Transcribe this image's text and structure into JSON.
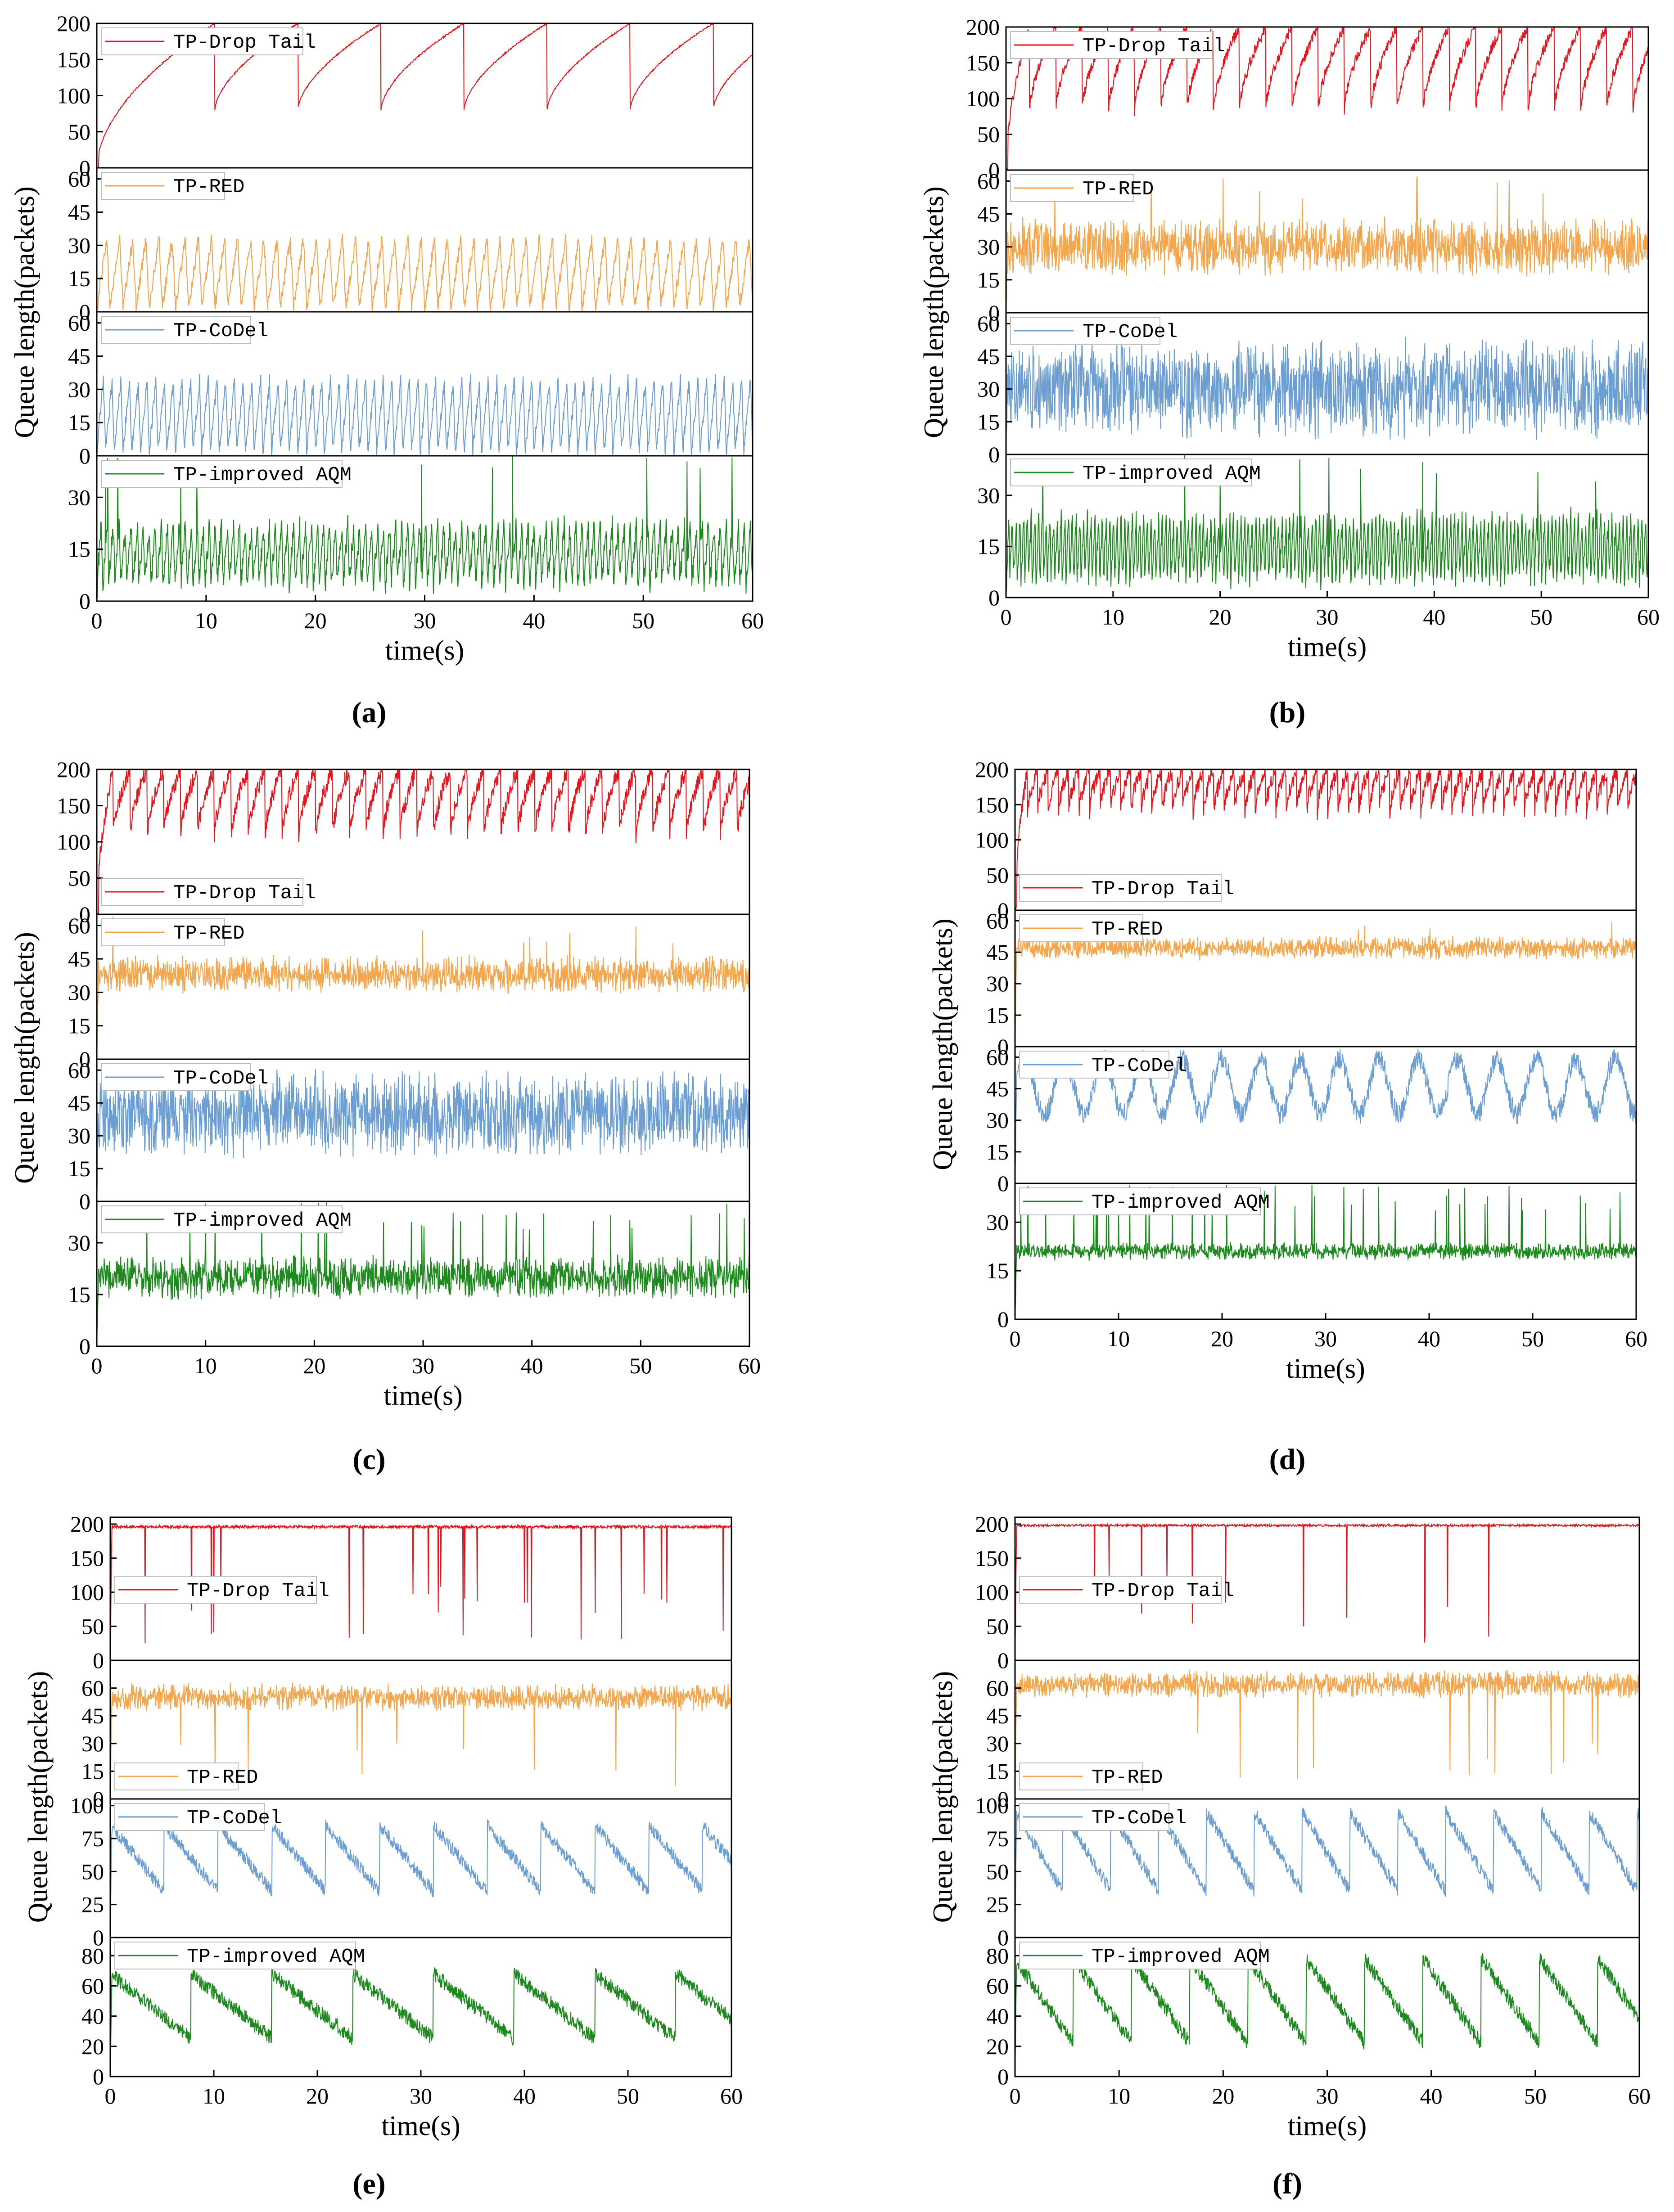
{
  "figure": {
    "ylabel": "Queue length(packets)",
    "xlabel": "time(s)",
    "x_ticks": [
      "0",
      "10",
      "20",
      "30",
      "40",
      "50",
      "60"
    ]
  },
  "colors": {
    "drop_tail": "#e8141b",
    "red": "#f5a54a",
    "codel": "#6b9ed2",
    "improved_aqm": "#1d8a1d",
    "axis": "#000000",
    "legend_border": "#bbbbbb"
  },
  "chart_data": [
    {
      "type": "line",
      "panel_label": "(a)",
      "xlabel": "time(s)",
      "ylabel": "Queue length(packets)",
      "xlim": [
        0,
        60
      ],
      "subplots": [
        {
          "series": "TP-Drop Tail",
          "color_key": "drop_tail",
          "legend_pos": "top-left",
          "ylim": [
            0,
            200
          ],
          "yticks": [
            "0",
            "50",
            "100",
            "150",
            "200"
          ],
          "pattern": "sawtooth",
          "period": 7.6,
          "start": 10.8,
          "low": 80,
          "high": 200,
          "noise": 1
        },
        {
          "series": "TP-RED",
          "color_key": "red",
          "legend_pos": "top-left",
          "ylim": [
            0,
            65
          ],
          "yticks": [
            "0",
            "15",
            "30",
            "45",
            "60"
          ],
          "pattern": "oscillation",
          "period": 1.2,
          "low": 2,
          "high": 33,
          "noise": 3
        },
        {
          "series": "TP-CoDel",
          "color_key": "codel",
          "legend_pos": "top-left",
          "ylim": [
            0,
            65
          ],
          "yticks": [
            "0",
            "15",
            "30",
            "45",
            "60"
          ],
          "pattern": "oscillation",
          "period": 0.8,
          "low": 2,
          "high": 34,
          "noise": 3
        },
        {
          "series": "TP-improved AQM",
          "color_key": "improved_aqm",
          "legend_pos": "top-left",
          "ylim": [
            0,
            42
          ],
          "yticks": [
            "0",
            "15",
            "30"
          ],
          "pattern": "oscillation",
          "period": 0.55,
          "low": 5,
          "high": 22,
          "noise": 3,
          "spikes": 12
        }
      ]
    },
    {
      "type": "line",
      "panel_label": "(b)",
      "xlabel": "time(s)",
      "ylabel": "Queue length(packets)",
      "xlim": [
        0,
        60
      ],
      "subplots": [
        {
          "series": "TP-Drop Tail",
          "color_key": "drop_tail",
          "legend_pos": "top-left",
          "ylim": [
            0,
            200
          ],
          "yticks": [
            "0",
            "50",
            "100",
            "150",
            "200"
          ],
          "pattern": "sawtooth",
          "period": 2.45,
          "start": 2.2,
          "low": 80,
          "high": 200,
          "noise": 8
        },
        {
          "series": "TP-RED",
          "color_key": "red",
          "legend_pos": "top-left",
          "ylim": [
            0,
            65
          ],
          "yticks": [
            "0",
            "15",
            "30",
            "45",
            "60"
          ],
          "pattern": "noise",
          "mean": 30,
          "amp": 9,
          "noise": 5,
          "spikes": 10
        },
        {
          "series": "TP-CoDel",
          "color_key": "codel",
          "legend_pos": "top-left",
          "ylim": [
            0,
            65
          ],
          "yticks": [
            "0",
            "15",
            "30",
            "45",
            "60"
          ],
          "pattern": "noise",
          "mean": 30,
          "amp": 16,
          "noise": 8
        },
        {
          "series": "TP-improved AQM",
          "color_key": "improved_aqm",
          "legend_pos": "top-left",
          "ylim": [
            0,
            42
          ],
          "yticks": [
            "0",
            "15",
            "30"
          ],
          "pattern": "oscillation",
          "period": 0.35,
          "low": 5,
          "high": 24,
          "noise": 3,
          "spikes": 10
        }
      ]
    },
    {
      "type": "line",
      "panel_label": "(c)",
      "xlabel": "time(s)",
      "ylabel": "Queue length(packets)",
      "xlim": [
        0,
        60
      ],
      "subplots": [
        {
          "series": "TP-Drop Tail",
          "color_key": "drop_tail",
          "legend_pos": "bottom-left",
          "ylim": [
            0,
            200
          ],
          "yticks": [
            "0",
            "50",
            "100",
            "150",
            "200"
          ],
          "pattern": "sawtooth",
          "period": 1.55,
          "start": 1.5,
          "low": 105,
          "high": 200,
          "noise": 12
        },
        {
          "series": "TP-RED",
          "color_key": "red",
          "legend_pos": "top-left",
          "ylim": [
            0,
            65
          ],
          "yticks": [
            "0",
            "15",
            "30",
            "45",
            "60"
          ],
          "pattern": "noise",
          "mean": 38,
          "amp": 5,
          "noise": 4,
          "spikes": 8
        },
        {
          "series": "TP-CoDel",
          "color_key": "codel",
          "legend_pos": "top-left",
          "ylim": [
            0,
            65
          ],
          "yticks": [
            "0",
            "15",
            "30",
            "45",
            "60"
          ],
          "pattern": "noise",
          "mean": 40,
          "amp": 14,
          "noise": 7
        },
        {
          "series": "TP-improved AQM",
          "color_key": "improved_aqm",
          "legend_pos": "top-left",
          "ylim": [
            0,
            42
          ],
          "yticks": [
            "0",
            "15",
            "30"
          ],
          "pattern": "noise",
          "mean": 20,
          "amp": 4,
          "noise": 3,
          "spikes": 30
        }
      ]
    },
    {
      "type": "line",
      "panel_label": "(d)",
      "xlabel": "time(s)",
      "ylabel": "Queue length(packets)",
      "xlim": [
        0,
        60
      ],
      "subplots": [
        {
          "series": "TP-Drop Tail",
          "color_key": "drop_tail",
          "legend_pos": "bottom-left",
          "ylim": [
            0,
            200
          ],
          "yticks": [
            "0",
            "50",
            "100",
            "150",
            "200"
          ],
          "pattern": "sawtooth",
          "period": 1.0,
          "start": 1.2,
          "low": 140,
          "high": 200,
          "noise": 12
        },
        {
          "series": "TP-RED",
          "color_key": "red",
          "legend_pos": "top-left",
          "ylim": [
            0,
            65
          ],
          "yticks": [
            "0",
            "15",
            "30",
            "45",
            "60"
          ],
          "pattern": "noise",
          "mean": 47,
          "amp": 3,
          "noise": 3,
          "spikes": 8
        },
        {
          "series": "TP-CoDel",
          "color_key": "codel",
          "legend_pos": "top-left",
          "ylim": [
            0,
            65
          ],
          "yticks": [
            "0",
            "15",
            "30",
            "45",
            "60"
          ],
          "pattern": "wave",
          "period": 3.8,
          "mean": 46,
          "amp": 13,
          "noise": 5
        },
        {
          "series": "TP-improved AQM",
          "color_key": "improved_aqm",
          "legend_pos": "top-left",
          "ylim": [
            0,
            42
          ],
          "yticks": [
            "0",
            "15",
            "30"
          ],
          "pattern": "noise",
          "mean": 21,
          "amp": 1.5,
          "noise": 1.5,
          "spikes": 45
        }
      ]
    },
    {
      "type": "line",
      "panel_label": "(e)",
      "xlabel": "time(s)",
      "ylabel": "Queue length(packets)",
      "xlim": [
        0,
        60
      ],
      "subplots": [
        {
          "series": "TP-Drop Tail",
          "color_key": "drop_tail",
          "legend_pos": "middle-left",
          "ylim": [
            0,
            210
          ],
          "yticks": [
            "0",
            "50",
            "100",
            "150",
            "200"
          ],
          "pattern": "flat",
          "mean": 196,
          "noise": 2,
          "dips": 25
        },
        {
          "series": "TP-RED",
          "color_key": "red",
          "legend_pos": "bottom-left",
          "ylim": [
            0,
            75
          ],
          "yticks": [
            "0",
            "15",
            "30",
            "45",
            "60"
          ],
          "pattern": "noise",
          "mean": 55,
          "amp": 4,
          "noise": 4,
          "dips": 10
        },
        {
          "series": "TP-CoDel",
          "color_key": "codel",
          "legend_pos": "top-left",
          "ylim": [
            0,
            105
          ],
          "yticks": [
            "0",
            "25",
            "50",
            "75",
            "100"
          ],
          "pattern": "sawdown",
          "period": 5.2,
          "low": 35,
          "high": 85,
          "noise": 5
        },
        {
          "series": "TP-improved AQM",
          "color_key": "improved_aqm",
          "legend_pos": "top-left",
          "ylim": [
            0,
            92
          ],
          "yticks": [
            "0",
            "20",
            "40",
            "60",
            "80"
          ],
          "pattern": "sawdown",
          "period": 7.8,
          "low": 25,
          "high": 68,
          "noise": 5
        }
      ]
    },
    {
      "type": "line",
      "panel_label": "(f)",
      "xlabel": "time(s)",
      "ylabel": "Queue length(packets)",
      "xlim": [
        0,
        60
      ],
      "subplots": [
        {
          "series": "TP-Drop Tail",
          "color_key": "drop_tail",
          "legend_pos": "middle-left",
          "ylim": [
            0,
            210
          ],
          "yticks": [
            "0",
            "50",
            "100",
            "150",
            "200"
          ],
          "pattern": "flat",
          "mean": 198,
          "noise": 1.5,
          "dips": 12
        },
        {
          "series": "TP-RED",
          "color_key": "red",
          "legend_pos": "bottom-left",
          "ylim": [
            0,
            75
          ],
          "yticks": [
            "0",
            "15",
            "30",
            "45",
            "60"
          ],
          "pattern": "noise",
          "mean": 62,
          "amp": 4,
          "noise": 4,
          "dips": 12
        },
        {
          "series": "TP-CoDel",
          "color_key": "codel",
          "legend_pos": "top-left",
          "ylim": [
            0,
            105
          ],
          "yticks": [
            "0",
            "25",
            "50",
            "75",
            "100"
          ],
          "pattern": "sawdown",
          "period": 4.6,
          "low": 35,
          "high": 95,
          "noise": 5
        },
        {
          "series": "TP-improved AQM",
          "color_key": "improved_aqm",
          "legend_pos": "top-left",
          "ylim": [
            0,
            92
          ],
          "yticks": [
            "0",
            "20",
            "40",
            "60",
            "80"
          ],
          "pattern": "sawdown",
          "period": 5.6,
          "low": 22,
          "high": 78,
          "noise": 5
        }
      ]
    }
  ]
}
